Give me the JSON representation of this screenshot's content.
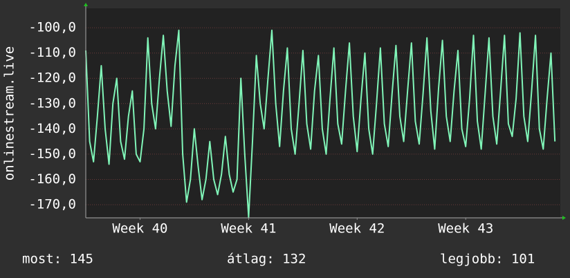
{
  "chart_data": {
    "type": "line",
    "y_label": "onlinestream.live",
    "x": [
      0,
      0.25,
      0.5,
      0.75,
      1,
      1.25,
      1.5,
      1.75,
      2,
      2.25,
      2.5,
      2.75,
      3,
      3.25,
      3.5,
      3.75,
      4,
      4.25,
      4.5,
      4.75,
      5,
      5.25,
      5.5,
      5.75,
      6,
      6.25,
      6.5,
      6.75,
      7,
      7.25,
      7.5,
      7.75,
      8,
      8.25,
      8.5,
      8.75,
      9,
      9.25,
      9.5,
      9.75,
      10,
      10.25,
      10.5,
      10.75,
      11,
      11.25,
      11.5,
      11.75,
      12,
      12.25,
      12.5,
      12.75,
      13,
      13.25,
      13.5,
      13.75,
      14,
      14.25,
      14.5,
      14.75,
      15,
      15.25,
      15.5,
      15.75,
      16,
      16.25,
      16.5,
      16.75,
      17,
      17.25,
      17.5,
      17.75,
      18,
      18.25,
      18.5,
      18.75,
      19,
      19.25,
      19.5,
      19.75,
      20,
      20.25,
      20.5,
      20.75,
      21,
      21.25,
      21.5,
      21.75,
      22,
      22.25,
      22.5,
      22.75,
      23,
      23.25,
      23.5,
      23.75,
      24,
      24.25,
      24.5,
      24.75,
      25,
      25.25,
      25.5,
      25.75,
      26,
      26.25,
      26.5,
      26.75,
      27,
      27.25,
      27.5,
      27.75,
      28,
      28.25,
      28.5,
      28.75,
      29,
      29.25,
      29.5,
      29.75,
      30,
      30.25
    ],
    "series": [
      {
        "name": "onlinestream.live",
        "color": "#80f5b8",
        "values": [
          -109,
          -145,
          -153,
          -135,
          -115,
          -140,
          -154,
          -130,
          -120,
          -145,
          -152,
          -135,
          -125,
          -150,
          -153,
          -140,
          -104,
          -130,
          -140,
          -120,
          -103,
          -125,
          -139,
          -115,
          -101,
          -150,
          -169,
          -160,
          -140,
          -155,
          -168,
          -160,
          -145,
          -160,
          -166,
          -158,
          -143,
          -158,
          -165,
          -160,
          -120,
          -150,
          -175,
          -145,
          -111,
          -130,
          -140,
          -120,
          -101,
          -130,
          -147,
          -125,
          -108,
          -140,
          -150,
          -130,
          -109,
          -138,
          -148,
          -125,
          -111,
          -140,
          -150,
          -128,
          -108,
          -138,
          -146,
          -125,
          -106,
          -135,
          -149,
          -128,
          -110,
          -140,
          -150,
          -130,
          -108,
          -138,
          -147,
          -126,
          -107,
          -135,
          -145,
          -125,
          -106,
          -137,
          -146,
          -126,
          -104,
          -133,
          -148,
          -124,
          -105,
          -135,
          -145,
          -125,
          -109,
          -140,
          -147,
          -128,
          -103,
          -137,
          -148,
          -126,
          -104,
          -135,
          -146,
          -125,
          -103,
          -138,
          -143,
          -128,
          -102,
          -135,
          -145,
          -125,
          -103,
          -140,
          -148,
          -128,
          -110,
          -145
        ]
      }
    ],
    "xlim": [
      0,
      30.6
    ],
    "xticks": [
      {
        "value": 3.5,
        "label": "Week 40"
      },
      {
        "value": 10.5,
        "label": "Week 41"
      },
      {
        "value": 17.5,
        "label": "Week 42"
      },
      {
        "value": 24.5,
        "label": "Week 43"
      }
    ],
    "ylim": [
      -175.2,
      -92.3
    ],
    "yticks": [
      {
        "value": -170,
        "label": "-170,0"
      },
      {
        "value": -160,
        "label": "-160,0"
      },
      {
        "value": -150,
        "label": "-150,0"
      },
      {
        "value": -140,
        "label": "-140,0"
      },
      {
        "value": -130,
        "label": "-130,0"
      },
      {
        "value": -120,
        "label": "-120,0"
      },
      {
        "value": -110,
        "label": "-110,0"
      },
      {
        "value": -100,
        "label": "-100,0"
      }
    ],
    "grid": true,
    "stats": [
      "most: 145",
      "átlag: 132",
      "legjobb: 101"
    ]
  }
}
